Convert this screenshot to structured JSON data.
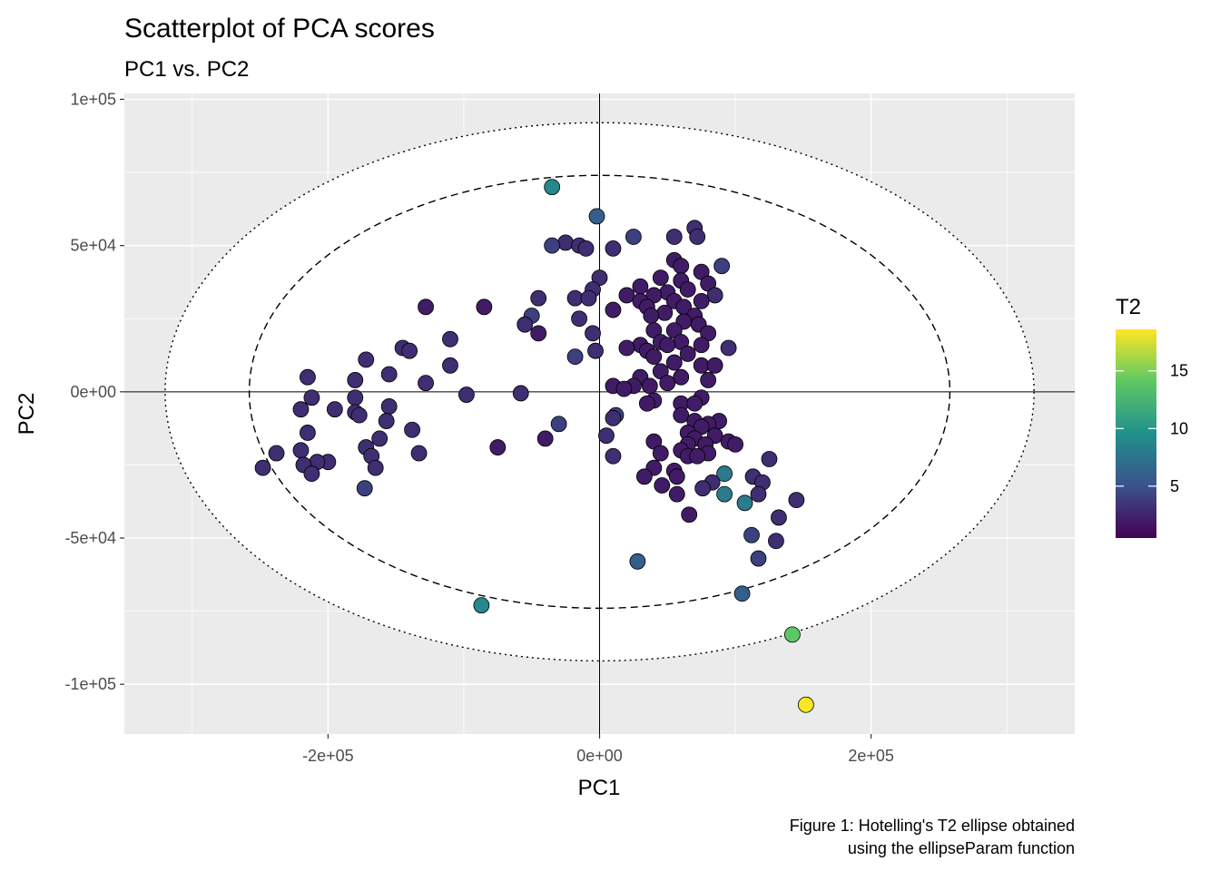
{
  "chart_data": {
    "type": "scatter",
    "title": "Scatterplot of PCA scores",
    "subtitle": "PC1 vs. PC2",
    "xlabel": "PC1",
    "ylabel": "PC2",
    "caption_lines": [
      "Figure 1: Hotelling's T2 ellipse obtained",
      "using the ellipseParam function"
    ],
    "xlim": [
      -350000,
      350000
    ],
    "ylim": [
      -117000,
      102000
    ],
    "x_ticks": [
      -200000,
      0,
      200000
    ],
    "x_tick_labels": [
      "-2e+05",
      "0e+00",
      "2e+05"
    ],
    "y_ticks": [
      -100000,
      -50000,
      0,
      50000,
      100000
    ],
    "y_tick_labels": [
      "-1e+05",
      "-5e+04",
      "0e+00",
      "5e+04",
      "1e+05"
    ],
    "grid": true,
    "reference_lines": {
      "x": 0,
      "y": 0
    },
    "ellipses": [
      {
        "style": "dashed",
        "a": 258000,
        "b": 74000
      },
      {
        "style": "dotted",
        "a": 320000,
        "b": 92000
      }
    ],
    "legend": {
      "title": "T2",
      "position": "right",
      "type": "colorbar",
      "range": [
        0.5,
        18.6
      ],
      "ticks": [
        5,
        10,
        15
      ],
      "tick_labels": [
        "5",
        "10",
        "15"
      ],
      "colors": [
        "#440154",
        "#3b528b",
        "#21908c",
        "#5dc863",
        "#fde725"
      ]
    },
    "points": [
      {
        "x": -35000,
        "y": 70000,
        "t2": 9
      },
      {
        "x": -2000,
        "y": 60000,
        "t2": 6
      },
      {
        "x": 70000,
        "y": 56000,
        "t2": 3
      },
      {
        "x": 72000,
        "y": 53000,
        "t2": 3
      },
      {
        "x": 55000,
        "y": 53000,
        "t2": 3
      },
      {
        "x": 25000,
        "y": 53000,
        "t2": 4
      },
      {
        "x": -25000,
        "y": 51000,
        "t2": 3
      },
      {
        "x": -15000,
        "y": 50000,
        "t2": 3
      },
      {
        "x": 10000,
        "y": 49000,
        "t2": 3
      },
      {
        "x": -35000,
        "y": 50000,
        "t2": 4
      },
      {
        "x": -10000,
        "y": 49000,
        "t2": 3
      },
      {
        "x": 55000,
        "y": 45000,
        "t2": 2
      },
      {
        "x": 60000,
        "y": 43000,
        "t2": 2
      },
      {
        "x": 90000,
        "y": 43000,
        "t2": 4
      },
      {
        "x": 75000,
        "y": 41000,
        "t2": 2
      },
      {
        "x": 0,
        "y": 39000,
        "t2": 3
      },
      {
        "x": 45000,
        "y": 39000,
        "t2": 2
      },
      {
        "x": 60000,
        "y": 38000,
        "t2": 2
      },
      {
        "x": 80000,
        "y": 37000,
        "t2": 2
      },
      {
        "x": 30000,
        "y": 36000,
        "t2": 2
      },
      {
        "x": 65000,
        "y": 35000,
        "t2": 2
      },
      {
        "x": 50000,
        "y": 34000,
        "t2": 2
      },
      {
        "x": -5000,
        "y": 35000,
        "t2": 3
      },
      {
        "x": 20000,
        "y": 33000,
        "t2": 2
      },
      {
        "x": 40000,
        "y": 33000,
        "t2": 2
      },
      {
        "x": 85000,
        "y": 33000,
        "t2": 3
      },
      {
        "x": -18000,
        "y": 32000,
        "t2": 3
      },
      {
        "x": -8000,
        "y": 32000,
        "t2": 3
      },
      {
        "x": -45000,
        "y": 32000,
        "t2": 3
      },
      {
        "x": 30000,
        "y": 31000,
        "t2": 2
      },
      {
        "x": 55000,
        "y": 31000,
        "t2": 2
      },
      {
        "x": 75000,
        "y": 31000,
        "t2": 2
      },
      {
        "x": 35000,
        "y": 29000,
        "t2": 2
      },
      {
        "x": 62000,
        "y": 29000,
        "t2": 2
      },
      {
        "x": -85000,
        "y": 29000,
        "t2": 2
      },
      {
        "x": -128000,
        "y": 29000,
        "t2": 2
      },
      {
        "x": 10000,
        "y": 28000,
        "t2": 2
      },
      {
        "x": 48000,
        "y": 27000,
        "t2": 2
      },
      {
        "x": 38000,
        "y": 26000,
        "t2": 2
      },
      {
        "x": 70000,
        "y": 26000,
        "t2": 2
      },
      {
        "x": 62000,
        "y": 24000,
        "t2": 2
      },
      {
        "x": -50000,
        "y": 26000,
        "t2": 4
      },
      {
        "x": -15000,
        "y": 25000,
        "t2": 3
      },
      {
        "x": 73000,
        "y": 23000,
        "t2": 2
      },
      {
        "x": -55000,
        "y": 23000,
        "t2": 3
      },
      {
        "x": 55000,
        "y": 21000,
        "t2": 2
      },
      {
        "x": 40000,
        "y": 21000,
        "t2": 2
      },
      {
        "x": 80000,
        "y": 20000,
        "t2": 2
      },
      {
        "x": -5000,
        "y": 20000,
        "t2": 3
      },
      {
        "x": -45000,
        "y": 20000,
        "t2": 2
      },
      {
        "x": 45000,
        "y": 17000,
        "t2": 2
      },
      {
        "x": 60000,
        "y": 17000,
        "t2": 2
      },
      {
        "x": 30000,
        "y": 16000,
        "t2": 2
      },
      {
        "x": -110000,
        "y": 18000,
        "t2": 3
      },
      {
        "x": 20000,
        "y": 15000,
        "t2": 2
      },
      {
        "x": 75000,
        "y": 16000,
        "t2": 2
      },
      {
        "x": 50000,
        "y": 16000,
        "t2": 2
      },
      {
        "x": 95000,
        "y": 15000,
        "t2": 3
      },
      {
        "x": -145000,
        "y": 15000,
        "t2": 3
      },
      {
        "x": -140000,
        "y": 14000,
        "t2": 3
      },
      {
        "x": 35000,
        "y": 14000,
        "t2": 2
      },
      {
        "x": -3000,
        "y": 14000,
        "t2": 3
      },
      {
        "x": 65000,
        "y": 13000,
        "t2": 2
      },
      {
        "x": -18000,
        "y": 12000,
        "t2": 4
      },
      {
        "x": 40000,
        "y": 12000,
        "t2": 2
      },
      {
        "x": -172000,
        "y": 11000,
        "t2": 3
      },
      {
        "x": 55000,
        "y": 10000,
        "t2": 2
      },
      {
        "x": 75000,
        "y": 9000,
        "t2": 2
      },
      {
        "x": 85000,
        "y": 9000,
        "t2": 2
      },
      {
        "x": -110000,
        "y": 9000,
        "t2": 3
      },
      {
        "x": 45000,
        "y": 7000,
        "t2": 2
      },
      {
        "x": -155000,
        "y": 6000,
        "t2": 3
      },
      {
        "x": -215000,
        "y": 5000,
        "t2": 3
      },
      {
        "x": 30000,
        "y": 5000,
        "t2": 2
      },
      {
        "x": 60000,
        "y": 5000,
        "t2": 2
      },
      {
        "x": -180000,
        "y": 4000,
        "t2": 3
      },
      {
        "x": -128000,
        "y": 3000,
        "t2": 3
      },
      {
        "x": 80000,
        "y": 4000,
        "t2": 2
      },
      {
        "x": 50000,
        "y": 3000,
        "t2": 2
      },
      {
        "x": 10000,
        "y": 2000,
        "t2": 2
      },
      {
        "x": 25000,
        "y": 2000,
        "t2": 2
      },
      {
        "x": 37000,
        "y": 2000,
        "t2": 2
      },
      {
        "x": 18000,
        "y": 1000,
        "t2": 2
      },
      {
        "x": -58000,
        "y": -500,
        "t2": 3
      },
      {
        "x": -98000,
        "y": -1000,
        "t2": 3
      },
      {
        "x": -212000,
        "y": -2000,
        "t2": 3
      },
      {
        "x": -180000,
        "y": -2000,
        "t2": 3
      },
      {
        "x": 75000,
        "y": -2000,
        "t2": 2
      },
      {
        "x": 40000,
        "y": -3000,
        "t2": 2
      },
      {
        "x": 35000,
        "y": -4000,
        "t2": 2
      },
      {
        "x": 60000,
        "y": -4000,
        "t2": 2
      },
      {
        "x": 70000,
        "y": -4000,
        "t2": 2
      },
      {
        "x": -155000,
        "y": -5000,
        "t2": 3
      },
      {
        "x": -220000,
        "y": -6000,
        "t2": 3
      },
      {
        "x": -195000,
        "y": -6000,
        "t2": 3
      },
      {
        "x": -180000,
        "y": -7000,
        "t2": 3
      },
      {
        "x": -177000,
        "y": -8000,
        "t2": 3
      },
      {
        "x": 60000,
        "y": -8000,
        "t2": 2
      },
      {
        "x": 12000,
        "y": -8000,
        "t2": 4
      },
      {
        "x": 10000,
        "y": -9000,
        "t2": 3
      },
      {
        "x": -157000,
        "y": -10000,
        "t2": 3
      },
      {
        "x": 70000,
        "y": -10000,
        "t2": 2
      },
      {
        "x": 88000,
        "y": -10000,
        "t2": 2
      },
      {
        "x": 80000,
        "y": -11000,
        "t2": 2
      },
      {
        "x": 75000,
        "y": -12000,
        "t2": 2
      },
      {
        "x": -30000,
        "y": -11000,
        "t2": 4
      },
      {
        "x": -138000,
        "y": -13000,
        "t2": 3
      },
      {
        "x": 65000,
        "y": -14000,
        "t2": 2
      },
      {
        "x": 85000,
        "y": -15000,
        "t2": 2
      },
      {
        "x": -215000,
        "y": -14000,
        "t2": 3
      },
      {
        "x": 5000,
        "y": -15000,
        "t2": 3
      },
      {
        "x": 70000,
        "y": -16000,
        "t2": 2
      },
      {
        "x": -162000,
        "y": -16000,
        "t2": 3
      },
      {
        "x": -40000,
        "y": -16000,
        "t2": 2
      },
      {
        "x": 95000,
        "y": -17000,
        "t2": 2
      },
      {
        "x": 78000,
        "y": -18000,
        "t2": 2
      },
      {
        "x": 100000,
        "y": -18000,
        "t2": 2
      },
      {
        "x": 65000,
        "y": -18000,
        "t2": 2
      },
      {
        "x": 40000,
        "y": -17000,
        "t2": 2
      },
      {
        "x": -75000,
        "y": -19000,
        "t2": 2
      },
      {
        "x": -172000,
        "y": -19000,
        "t2": 3
      },
      {
        "x": 60000,
        "y": -20000,
        "t2": 2
      },
      {
        "x": 80000,
        "y": -21000,
        "t2": 2
      },
      {
        "x": 45000,
        "y": -21000,
        "t2": 2
      },
      {
        "x": -220000,
        "y": -20000,
        "t2": 3
      },
      {
        "x": -133000,
        "y": -21000,
        "t2": 3
      },
      {
        "x": -238000,
        "y": -21000,
        "t2": 3
      },
      {
        "x": 65000,
        "y": -22000,
        "t2": 2
      },
      {
        "x": 72000,
        "y": -22000,
        "t2": 2
      },
      {
        "x": -168000,
        "y": -22000,
        "t2": 3
      },
      {
        "x": 10000,
        "y": -22000,
        "t2": 3
      },
      {
        "x": 125000,
        "y": -23000,
        "t2": 3
      },
      {
        "x": -200000,
        "y": -24000,
        "t2": 3
      },
      {
        "x": -208000,
        "y": -24000,
        "t2": 3
      },
      {
        "x": -218000,
        "y": -25000,
        "t2": 3
      },
      {
        "x": -248000,
        "y": -26000,
        "t2": 3
      },
      {
        "x": -165000,
        "y": -26000,
        "t2": 3
      },
      {
        "x": 55000,
        "y": -27000,
        "t2": 2
      },
      {
        "x": 40000,
        "y": -26000,
        "t2": 2
      },
      {
        "x": -212000,
        "y": -28000,
        "t2": 3
      },
      {
        "x": 92000,
        "y": -28000,
        "t2": 8
      },
      {
        "x": 113000,
        "y": -29000,
        "t2": 3
      },
      {
        "x": 57000,
        "y": -29000,
        "t2": 2
      },
      {
        "x": 33000,
        "y": -29000,
        "t2": 2
      },
      {
        "x": 83000,
        "y": -31000,
        "t2": 3
      },
      {
        "x": 120000,
        "y": -31000,
        "t2": 3
      },
      {
        "x": 46000,
        "y": -32000,
        "t2": 2
      },
      {
        "x": 76000,
        "y": -33000,
        "t2": 3
      },
      {
        "x": -173000,
        "y": -33000,
        "t2": 4
      },
      {
        "x": 117000,
        "y": -35000,
        "t2": 3
      },
      {
        "x": 57000,
        "y": -35000,
        "t2": 2
      },
      {
        "x": 92000,
        "y": -35000,
        "t2": 8
      },
      {
        "x": 145000,
        "y": -37000,
        "t2": 3
      },
      {
        "x": 107000,
        "y": -38000,
        "t2": 8
      },
      {
        "x": 66000,
        "y": -42000,
        "t2": 2
      },
      {
        "x": 132000,
        "y": -43000,
        "t2": 3
      },
      {
        "x": 112000,
        "y": -49000,
        "t2": 4
      },
      {
        "x": 130000,
        "y": -51000,
        "t2": 3
      },
      {
        "x": 117000,
        "y": -57000,
        "t2": 4
      },
      {
        "x": 28000,
        "y": -58000,
        "t2": 6
      },
      {
        "x": 105000,
        "y": -69000,
        "t2": 6
      },
      {
        "x": -87000,
        "y": -73000,
        "t2": 9
      },
      {
        "x": 142000,
        "y": -83000,
        "t2": 14
      },
      {
        "x": 152000,
        "y": -107000,
        "t2": 18.5
      }
    ]
  }
}
